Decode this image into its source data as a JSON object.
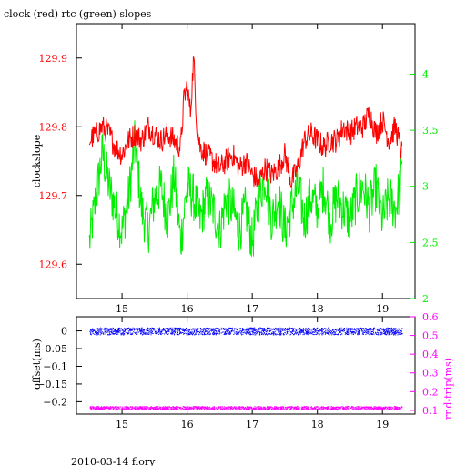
{
  "title": "clock (red) rtc (green) slopes",
  "footer": "2010-03-14 flory",
  "colors": {
    "clock": "#ff0000",
    "rtc": "#00ee00",
    "offset": "#0000ff",
    "roundtrip": "#ff00ff",
    "frame": "#000000"
  },
  "chart_data": [
    {
      "type": "line",
      "title": "clock (red) rtc (green) slopes",
      "ylabel": "clockslope",
      "xlim": [
        14.3,
        19.5
      ],
      "xticks": [
        15,
        16,
        17,
        18,
        19
      ],
      "ylim_left": [
        129.55,
        129.95
      ],
      "yticks_left": [
        129.6,
        129.7,
        129.8,
        129.9
      ],
      "yticks_left_labels": [
        "129.6",
        "129.7",
        "129.8",
        "129.9"
      ],
      "ylim_right": [
        2,
        4.45
      ],
      "yticks_right": [
        2,
        2.5,
        3,
        3.5,
        4
      ],
      "yticks_right_labels": [
        "2",
        "2.5",
        "3",
        "3.5",
        "4"
      ],
      "series": [
        {
          "axis": "left",
          "color": "#ff0000",
          "x": [
            14.5,
            14.6,
            14.7,
            14.8,
            14.9,
            15.0,
            15.1,
            15.2,
            15.3,
            15.4,
            15.5,
            15.6,
            15.7,
            15.8,
            15.9,
            15.95,
            16.0,
            16.05,
            16.1,
            16.15,
            16.2,
            16.3,
            16.4,
            16.5,
            16.6,
            16.7,
            16.8,
            16.9,
            17.0,
            17.1,
            17.2,
            17.3,
            17.4,
            17.5,
            17.55,
            17.6,
            17.7,
            17.8,
            17.9,
            18.0,
            18.1,
            18.2,
            18.3,
            18.4,
            18.5,
            18.6,
            18.7,
            18.8,
            18.9,
            19.0,
            19.1,
            19.2,
            19.3
          ],
          "y": [
            129.78,
            129.79,
            129.8,
            129.79,
            129.77,
            129.76,
            129.78,
            129.79,
            129.78,
            129.8,
            129.79,
            129.78,
            129.79,
            129.78,
            129.77,
            129.84,
            129.86,
            129.82,
            129.9,
            129.8,
            129.77,
            129.76,
            129.75,
            129.74,
            129.75,
            129.76,
            129.74,
            129.75,
            129.73,
            129.72,
            129.74,
            129.73,
            129.74,
            129.76,
            129.74,
            129.72,
            129.74,
            129.78,
            129.79,
            129.78,
            129.77,
            129.78,
            129.78,
            129.8,
            129.79,
            129.8,
            129.8,
            129.82,
            129.79,
            129.81,
            129.78,
            129.8,
            129.76
          ]
        },
        {
          "axis": "right",
          "color": "#00ee00",
          "x": [
            14.5,
            14.6,
            14.7,
            14.8,
            14.9,
            15.0,
            15.1,
            15.2,
            15.3,
            15.4,
            15.5,
            15.6,
            15.7,
            15.8,
            15.9,
            16.0,
            16.1,
            16.2,
            16.3,
            16.4,
            16.5,
            16.6,
            16.7,
            16.8,
            16.9,
            17.0,
            17.1,
            17.2,
            17.3,
            17.4,
            17.5,
            17.6,
            17.7,
            17.8,
            17.9,
            18.0,
            18.1,
            18.2,
            18.3,
            18.4,
            18.5,
            18.6,
            18.7,
            18.8,
            18.9,
            19.0,
            19.1,
            19.2,
            19.3
          ],
          "y": [
            2.5,
            2.9,
            3.3,
            3.0,
            2.8,
            2.6,
            2.9,
            3.4,
            2.8,
            2.6,
            2.9,
            3.0,
            2.7,
            3.1,
            2.5,
            3.0,
            2.9,
            2.7,
            2.9,
            2.8,
            2.6,
            2.9,
            2.8,
            2.6,
            2.8,
            2.5,
            2.9,
            3.1,
            2.7,
            2.9,
            2.6,
            2.8,
            3.0,
            2.7,
            2.9,
            2.8,
            3.0,
            2.7,
            2.9,
            2.8,
            2.7,
            2.9,
            3.0,
            2.8,
            3.0,
            2.7,
            2.9,
            2.8,
            3.1
          ]
        }
      ]
    },
    {
      "type": "scatter",
      "ylabel_left": "offset(ms)",
      "ylabel_right": "rnd-trip(ms)",
      "xlim": [
        14.3,
        19.5
      ],
      "xticks": [
        15,
        16,
        17,
        18,
        19
      ],
      "ylim_left": [
        -0.235,
        0.04
      ],
      "yticks_left": [
        0,
        -0.05,
        -0.1,
        -0.15,
        -0.2
      ],
      "yticks_left_labels": [
        "0",
        "−0.05",
        "−0.1",
        "−0.15",
        "−0.2"
      ],
      "ylim_right": [
        0.08,
        0.6
      ],
      "yticks_right": [
        0.1,
        0.2,
        0.3,
        0.4,
        0.5,
        0.6
      ],
      "yticks_right_labels": [
        "0.1",
        "0.2",
        "0.3",
        "0.4",
        "0.5",
        "0.6"
      ],
      "series": [
        {
          "axis": "left",
          "color": "#0000ff",
          "x_range": [
            14.5,
            19.3
          ],
          "y_center": 0.0,
          "y_spread": 0.01
        },
        {
          "axis": "right",
          "color": "#ff00ff",
          "x_range": [
            14.5,
            19.3
          ],
          "y_center": 0.115,
          "y_spread": 0.008
        }
      ]
    }
  ]
}
